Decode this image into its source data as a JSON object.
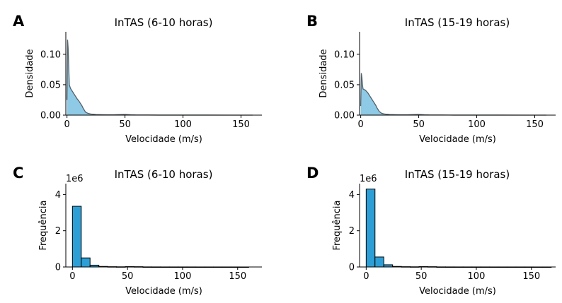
{
  "figure": {
    "colors": {
      "kde_fill": "#8ecae6",
      "kde_line": "#52616b",
      "hist_fill": "#2e9fd6",
      "hist_edge": "#000000",
      "axis": "#000000"
    }
  },
  "chart_data": [
    {
      "panel": "A",
      "type": "area",
      "title": "InTAS (6-10 horas)",
      "xlabel": "Velocidade (m/s)",
      "ylabel": "Densidade",
      "xlim": [
        -1,
        168
      ],
      "ylim": [
        0,
        0.137
      ],
      "xticks": [
        0,
        50,
        100,
        150
      ],
      "yticks": [
        0.0,
        0.05,
        0.1
      ],
      "ytick_labels": [
        "0.00",
        "0.05",
        "0.10"
      ],
      "grid": false,
      "series": [
        {
          "x": [
            0,
            0.5,
            1,
            1.5,
            2,
            3,
            4,
            5,
            6,
            7,
            8,
            9,
            10,
            11,
            12,
            13,
            14,
            15,
            16,
            18,
            20,
            22,
            25,
            30,
            35,
            40,
            45,
            50,
            55,
            60,
            70,
            80,
            100,
            120,
            140,
            160
          ],
          "y": [
            0.025,
            0.124,
            0.11,
            0.08,
            0.05,
            0.044,
            0.041,
            0.038,
            0.035,
            0.032,
            0.029,
            0.026,
            0.024,
            0.021,
            0.018,
            0.015,
            0.011,
            0.008,
            0.005,
            0.003,
            0.002,
            0.0015,
            0.001,
            0.0007,
            0.0005,
            0.0006,
            0.0008,
            0.0012,
            0.0006,
            0.0003,
            0.0002,
            0.0001,
            0.0001,
            5e-05,
            3e-05,
            2e-05
          ]
        }
      ]
    },
    {
      "panel": "B",
      "type": "area",
      "title": "InTAS (15-19 horas)",
      "xlabel": "Velocidade (m/s)",
      "ylabel": "Densidade",
      "xlim": [
        -1,
        168
      ],
      "ylim": [
        0,
        0.137
      ],
      "xticks": [
        0,
        50,
        100,
        150
      ],
      "yticks": [
        0.0,
        0.05,
        0.1
      ],
      "ytick_labels": [
        "0.00",
        "0.05",
        "0.10"
      ],
      "grid": false,
      "series": [
        {
          "x": [
            0,
            0.5,
            1,
            1.5,
            2,
            3,
            4,
            5,
            6,
            7,
            8,
            9,
            10,
            11,
            12,
            13,
            14,
            15,
            16,
            18,
            20,
            22,
            25,
            30,
            35,
            40,
            45,
            50,
            55,
            60,
            70,
            80,
            100,
            120,
            140,
            160
          ],
          "y": [
            0.015,
            0.069,
            0.062,
            0.05,
            0.043,
            0.042,
            0.041,
            0.039,
            0.037,
            0.034,
            0.031,
            0.028,
            0.025,
            0.022,
            0.019,
            0.016,
            0.012,
            0.009,
            0.006,
            0.003,
            0.002,
            0.0015,
            0.001,
            0.0007,
            0.0005,
            0.0006,
            0.0008,
            0.0012,
            0.0006,
            0.0003,
            0.0002,
            0.0001,
            0.0001,
            5e-05,
            3e-05,
            2e-05
          ]
        }
      ]
    },
    {
      "panel": "C",
      "type": "bar",
      "title": "InTAS (6-10 horas)",
      "xlabel": "Velocidade (m/s)",
      "ylabel": "Frequência",
      "offset_label": "1e6",
      "xlim": [
        -6,
        172
      ],
      "ylim": [
        0,
        4.6
      ],
      "xticks": [
        0,
        50,
        100,
        150
      ],
      "yticks": [
        0,
        2,
        4
      ],
      "grid": false,
      "bin_edges": [
        0,
        8,
        16,
        24,
        32,
        40,
        48,
        56,
        64,
        72,
        80,
        88,
        96,
        104,
        112,
        120,
        128,
        136,
        144,
        152,
        160
      ],
      "values": [
        3.35,
        0.5,
        0.1,
        0.03,
        0.015,
        0.01,
        0.02,
        0.015,
        0.005,
        0.004,
        0.003,
        0.003,
        0.003,
        0.003,
        0.002,
        0.002,
        0.002,
        0.002,
        0.002,
        0.001
      ]
    },
    {
      "panel": "D",
      "type": "bar",
      "title": "InTAS (15-19 horas)",
      "xlabel": "Velocidade (m/s)",
      "ylabel": "Frequência",
      "offset_label": "1e6",
      "xlim": [
        -6,
        172
      ],
      "ylim": [
        0,
        4.6
      ],
      "xticks": [
        0,
        50,
        100,
        150
      ],
      "yticks": [
        0,
        2,
        4
      ],
      "grid": false,
      "bin_edges": [
        0,
        8,
        16,
        24,
        32,
        40,
        48,
        56,
        64,
        72,
        80,
        88,
        96,
        104,
        112,
        120,
        128,
        136,
        144,
        152,
        160,
        168
      ],
      "values": [
        4.3,
        0.55,
        0.12,
        0.03,
        0.015,
        0.01,
        0.02,
        0.015,
        0.005,
        0.004,
        0.003,
        0.003,
        0.003,
        0.003,
        0.002,
        0.002,
        0.002,
        0.002,
        0.002,
        0.001,
        0.001
      ]
    }
  ]
}
